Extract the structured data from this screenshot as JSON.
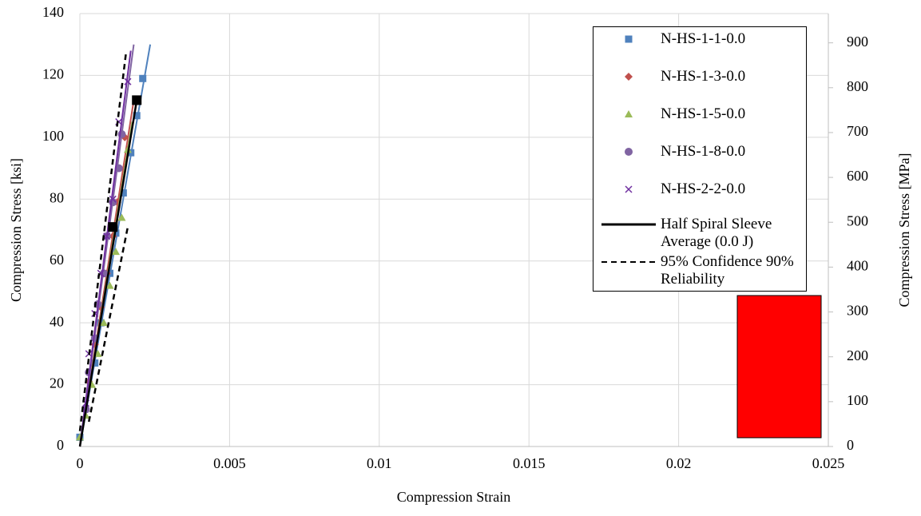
{
  "chart_data": {
    "type": "scatter",
    "x_label": "Compression Strain",
    "y_label": "Compression Stress [ksi]",
    "y2_label": "Compression Stress [MPa]",
    "xlim": [
      0,
      0.025
    ],
    "xticks": [
      0,
      0.005,
      0.01,
      0.015,
      0.02,
      0.025
    ],
    "ylim": [
      0,
      140
    ],
    "yticks": [
      0,
      20,
      40,
      60,
      80,
      100,
      120,
      140
    ],
    "y2lim": [
      0,
      965.27
    ],
    "y2ticks": [
      0,
      100,
      200,
      300,
      400,
      500,
      600,
      700,
      800,
      900
    ],
    "grid": true,
    "series": [
      {
        "name": "N-HS-1-1-0.0",
        "color": "#4f81bd",
        "marker": "square",
        "x": [
          0,
          0.0005,
          0.0007,
          0.001,
          0.0012,
          0.00145,
          0.0017,
          0.0019,
          0.0021
        ],
        "values": [
          3,
          27,
          40,
          56,
          69,
          82,
          95,
          107,
          119
        ],
        "fit_x": [
          0,
          0.00235
        ],
        "fit_values": [
          0,
          130
        ]
      },
      {
        "name": "N-HS-1-3-0.0",
        "color": "#c0504d",
        "marker": "diamond",
        "x": [
          0.0003,
          0.0005,
          0.0007,
          0.0009,
          0.0011,
          0.00125,
          0.0015
        ],
        "values": [
          21,
          33,
          45,
          56,
          68,
          79,
          100
        ],
        "fit_x": [
          0,
          0.0018
        ],
        "fit_values": [
          0,
          112
        ]
      },
      {
        "name": "N-HS-1-5-0.0",
        "color": "#9bbb59",
        "marker": "triangle",
        "x": [
          0,
          0.0002,
          0.0004,
          0.0006,
          0.0008,
          0.001,
          0.0012,
          0.0014,
          0.0016
        ],
        "values": [
          3,
          10,
          20,
          30,
          40,
          52,
          63,
          74,
          96
        ],
        "fit_x": [
          0,
          0.00175
        ],
        "fit_values": [
          0,
          105
        ]
      },
      {
        "name": "N-HS-1-8-0.0",
        "color": "#8064a2",
        "marker": "circle",
        "x": [
          0.0002,
          0.0003,
          0.0005,
          0.0006,
          0.0008,
          0.0009,
          0.0011,
          0.0013,
          0.0014
        ],
        "values": [
          12,
          24,
          35,
          46,
          56,
          68,
          79,
          90,
          101
        ],
        "fit_x": [
          0,
          0.0018
        ],
        "fit_values": [
          0,
          130
        ]
      },
      {
        "name": "N-HS-2-2-0.0",
        "color": "#7030a0",
        "marker": "x",
        "x": [
          0.0002,
          0.0003,
          0.0005,
          0.0007,
          0.0009,
          0.0011,
          0.0013,
          0.0016
        ],
        "values": [
          14,
          30,
          43,
          56,
          68,
          80,
          105,
          118
        ],
        "fit_x": [
          0,
          0.0017
        ],
        "fit_values": [
          0,
          128
        ]
      },
      {
        "name": "Half Spiral Sleeve Average (0.0 J)",
        "color": "#000000",
        "marker": "square-big",
        "line": "solid",
        "x": [
          0.0011,
          0.0019
        ],
        "values": [
          71,
          112
        ],
        "fit_x": [
          0,
          0.0019
        ],
        "fit_values": [
          0,
          112
        ]
      },
      {
        "name": "95% Confidence 90% Reliability",
        "color": "#000000",
        "line": "dashed",
        "fit_x": [
          0,
          0.00155,
          null,
          0.0003,
          0.0016
        ],
        "fit_values": [
          5,
          128,
          null,
          8,
          71
        ]
      }
    ]
  }
}
